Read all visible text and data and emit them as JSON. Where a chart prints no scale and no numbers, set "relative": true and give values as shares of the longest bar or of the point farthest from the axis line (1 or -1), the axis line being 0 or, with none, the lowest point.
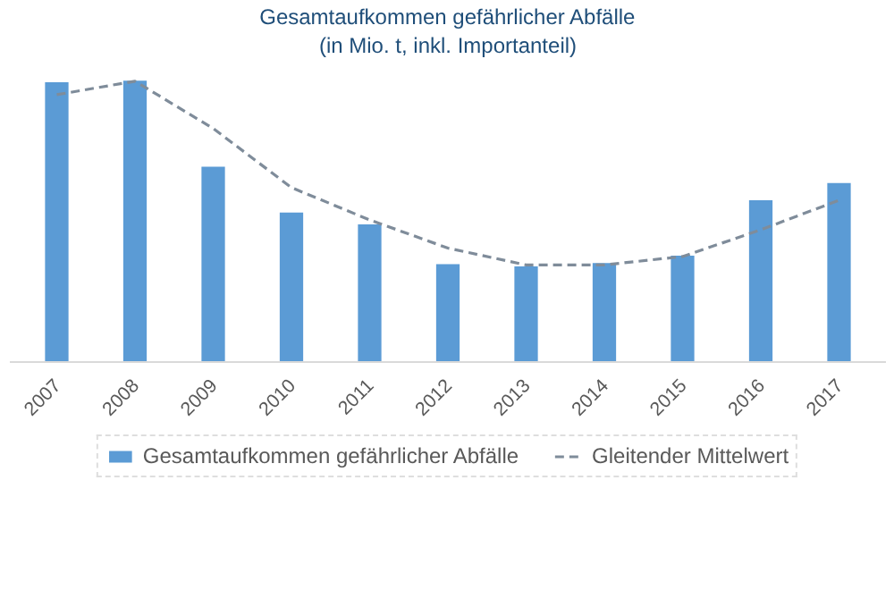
{
  "chart_data": {
    "type": "bar",
    "title": "Gesamtaufkommen gefährlicher Abfälle",
    "subtitle": "(in Mio. t, inkl. Importanteil)",
    "relative": true,
    "legend": "bottom",
    "categories": [
      "2007",
      "2008",
      "2009",
      "2010",
      "2011",
      "2012",
      "2013",
      "2014",
      "2015",
      "2016",
      "2017"
    ],
    "series": [
      {
        "name": "Gesamtaufkommen gefährlicher Abfälle",
        "color": "#5b9bd5",
        "values": [
          0.994,
          1,
          0.694,
          0.531,
          0.489,
          0.348,
          0.34,
          0.352,
          0.378,
          0.575,
          0.636
        ]
      },
      {
        "name": "Gleitender Mittelwert",
        "type": "line",
        "line_style": "dashed",
        "color": "#7f8c9a",
        "values": [
          0.95,
          0.998,
          0.83,
          0.62,
          0.505,
          0.405,
          0.345,
          0.345,
          0.375,
          0.47,
          0.575
        ]
      }
    ]
  }
}
